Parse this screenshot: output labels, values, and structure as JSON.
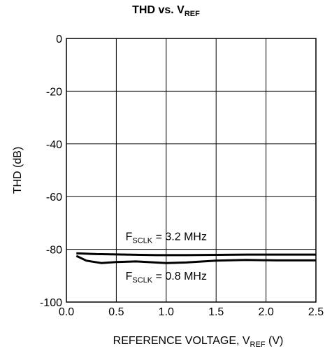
{
  "chart_data": {
    "type": "line",
    "title": {
      "main": "THD vs. V",
      "sub": "REF"
    },
    "xlabel": {
      "main": "REFERENCE VOLTAGE, V",
      "sub": "REF",
      "suffix": " (V)"
    },
    "ylabel": "THD (dB)",
    "xlim": [
      0.0,
      2.5
    ],
    "ylim": [
      -100,
      0
    ],
    "x_ticks": [
      "0.0",
      "0.5",
      "1.0",
      "1.5",
      "2.0",
      "2.5"
    ],
    "y_ticks": [
      "0",
      "-20",
      "-40",
      "-60",
      "-80",
      "-100"
    ],
    "grid": true,
    "series": [
      {
        "name": "F_SCLK = 3.2 MHz",
        "x": [
          0.1,
          0.3,
          0.6,
          0.9,
          1.2,
          1.5,
          1.8,
          2.1,
          2.5
        ],
        "y": [
          -81.5,
          -81.8,
          -82.0,
          -82.2,
          -82.2,
          -82.1,
          -82.0,
          -82.0,
          -82.0
        ]
      },
      {
        "name": "F_SCLK = 0.8 MHz",
        "x": [
          0.1,
          0.2,
          0.35,
          0.5,
          0.7,
          1.0,
          1.2,
          1.5,
          1.8,
          2.1,
          2.5
        ],
        "y": [
          -82.5,
          -84.3,
          -85.2,
          -84.8,
          -84.6,
          -85.2,
          -85.0,
          -84.3,
          -84.0,
          -84.2,
          -84.2
        ]
      }
    ],
    "annotations": [
      {
        "main": "F",
        "sub": "SCLK",
        "suffix": " = 3.2 MHz",
        "x": 1.0,
        "y": -76.5
      },
      {
        "main": "F",
        "sub": "SCLK",
        "suffix": " = 0.8 MHz",
        "x": 1.0,
        "y": -91.5
      }
    ]
  }
}
